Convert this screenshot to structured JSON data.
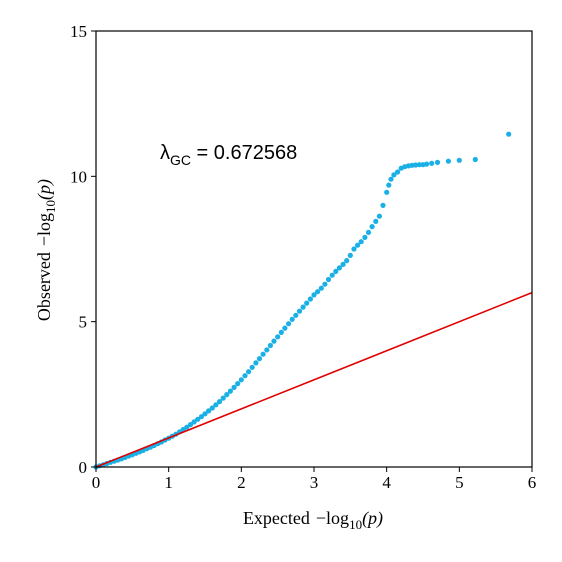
{
  "chart_data": {
    "type": "scatter",
    "title": "",
    "xlabel": {
      "prefix": "Expected",
      "minus": "−log",
      "sub": "10",
      "arg": "(p)"
    },
    "ylabel": {
      "prefix": "Observed",
      "minus": "−log",
      "sub": "10",
      "arg": "(p)"
    },
    "xlim": [
      0,
      6
    ],
    "ylim": [
      0,
      15
    ],
    "xticks": [
      0,
      1,
      2,
      3,
      4,
      5,
      6
    ],
    "yticks": [
      0,
      5,
      10,
      15
    ],
    "xtick_labels": [
      "0",
      "1",
      "2",
      "3",
      "4",
      "5",
      "6"
    ],
    "ytick_labels": [
      "0",
      "5",
      "10",
      "15"
    ],
    "grid": false,
    "annotation": {
      "symbol": "λ",
      "sub": "GC",
      "text": " = 0.672568"
    },
    "point_color": "#1ab0e6",
    "line_color": "#e00000",
    "reference_line": {
      "x": [
        0,
        6
      ],
      "y": [
        0,
        6
      ]
    },
    "series": [
      {
        "points": [
          [
            0.0,
            0.0
          ],
          [
            0.05,
            0.04
          ],
          [
            0.1,
            0.08
          ],
          [
            0.15,
            0.12
          ],
          [
            0.2,
            0.16
          ],
          [
            0.25,
            0.2
          ],
          [
            0.3,
            0.24
          ],
          [
            0.35,
            0.28
          ],
          [
            0.4,
            0.33
          ],
          [
            0.45,
            0.38
          ],
          [
            0.5,
            0.42
          ],
          [
            0.55,
            0.47
          ],
          [
            0.6,
            0.52
          ],
          [
            0.65,
            0.57
          ],
          [
            0.7,
            0.63
          ],
          [
            0.75,
            0.68
          ],
          [
            0.8,
            0.74
          ],
          [
            0.85,
            0.8
          ],
          [
            0.9,
            0.86
          ],
          [
            0.95,
            0.93
          ],
          [
            1.0,
            0.99
          ],
          [
            1.05,
            1.06
          ],
          [
            1.1,
            1.13
          ],
          [
            1.15,
            1.21
          ],
          [
            1.2,
            1.29
          ],
          [
            1.25,
            1.37
          ],
          [
            1.3,
            1.46
          ],
          [
            1.35,
            1.55
          ],
          [
            1.4,
            1.64
          ],
          [
            1.45,
            1.73
          ],
          [
            1.5,
            1.83
          ],
          [
            1.55,
            1.93
          ],
          [
            1.6,
            2.03
          ],
          [
            1.65,
            2.14
          ],
          [
            1.7,
            2.25
          ],
          [
            1.75,
            2.37
          ],
          [
            1.8,
            2.49
          ],
          [
            1.85,
            2.61
          ],
          [
            1.9,
            2.74
          ],
          [
            1.95,
            2.87
          ],
          [
            2.0,
            3.0
          ],
          [
            2.05,
            3.14
          ],
          [
            2.1,
            3.28
          ],
          [
            2.15,
            3.43
          ],
          [
            2.2,
            3.58
          ],
          [
            2.25,
            3.73
          ],
          [
            2.3,
            3.88
          ],
          [
            2.35,
            4.03
          ],
          [
            2.4,
            4.18
          ],
          [
            2.45,
            4.33
          ],
          [
            2.5,
            4.48
          ],
          [
            2.55,
            4.63
          ],
          [
            2.6,
            4.78
          ],
          [
            2.65,
            4.93
          ],
          [
            2.7,
            5.08
          ],
          [
            2.75,
            5.22
          ],
          [
            2.8,
            5.36
          ],
          [
            2.85,
            5.5
          ],
          [
            2.9,
            5.64
          ],
          [
            2.95,
            5.78
          ],
          [
            3.0,
            5.92
          ],
          [
            3.05,
            6.03
          ],
          [
            3.1,
            6.15
          ],
          [
            3.15,
            6.29
          ],
          [
            3.2,
            6.45
          ],
          [
            3.25,
            6.6
          ],
          [
            3.3,
            6.73
          ],
          [
            3.35,
            6.85
          ],
          [
            3.4,
            6.97
          ],
          [
            3.45,
            7.1
          ],
          [
            3.5,
            7.28
          ],
          [
            3.55,
            7.5
          ],
          [
            3.6,
            7.63
          ],
          [
            3.65,
            7.75
          ],
          [
            3.7,
            7.9
          ],
          [
            3.75,
            8.07
          ],
          [
            3.8,
            8.27
          ],
          [
            3.85,
            8.45
          ],
          [
            3.9,
            8.63
          ],
          [
            3.95,
            9.0
          ],
          [
            4.0,
            9.45
          ],
          [
            4.03,
            9.7
          ],
          [
            4.06,
            9.9
          ],
          [
            4.1,
            10.05
          ],
          [
            4.15,
            10.15
          ],
          [
            4.2,
            10.28
          ],
          [
            4.25,
            10.33
          ],
          [
            4.3,
            10.36
          ],
          [
            4.35,
            10.38
          ],
          [
            4.4,
            10.39
          ],
          [
            4.45,
            10.4
          ],
          [
            4.5,
            10.4
          ],
          [
            4.55,
            10.42
          ],
          [
            4.62,
            10.45
          ],
          [
            4.7,
            10.48
          ],
          [
            4.85,
            10.52
          ],
          [
            5.0,
            10.55
          ],
          [
            5.22,
            10.58
          ],
          [
            5.68,
            11.45
          ]
        ]
      }
    ]
  }
}
